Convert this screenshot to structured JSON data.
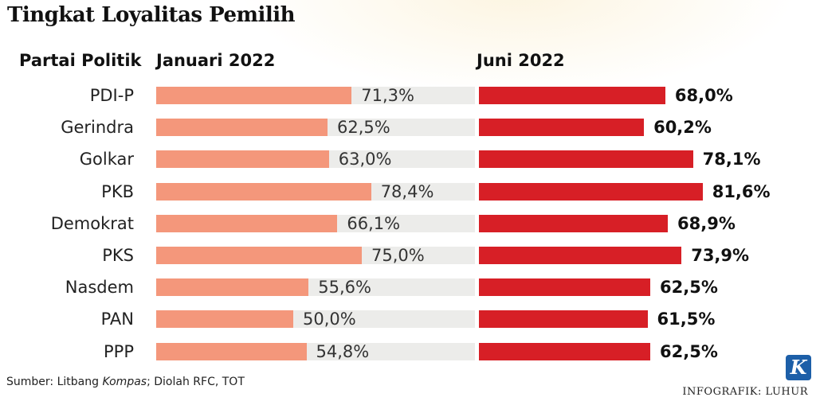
{
  "title": "Tingkat Loyalitas Pemilih",
  "headers": {
    "party": "Partai Politik",
    "jan": "Januari 2022",
    "jun": "Juni 2022"
  },
  "source": {
    "prefix": "Sumber: Litbang ",
    "italic": "Kompas",
    "suffix": "; Diolah RFC, TOT"
  },
  "credit": "INFOGRAFIK: LUHUR",
  "logo_letter": "K",
  "colors": {
    "jan": "#f4977b",
    "jun": "#d71f26",
    "track": "#ececea"
  },
  "chart_data": {
    "type": "bar",
    "categories": [
      "PDI-P",
      "Gerindra",
      "Golkar",
      "PKB",
      "Demokrat",
      "PKS",
      "Nasdem",
      "PAN",
      "PPP"
    ],
    "series": [
      {
        "name": "Januari 2022",
        "values": [
          71.3,
          62.5,
          63.0,
          78.4,
          66.1,
          75.0,
          55.6,
          50.0,
          54.8
        ],
        "labels": [
          "71,3%",
          "62,5%",
          "63,0%",
          "78,4%",
          "66,1%",
          "75,0%",
          "55,6%",
          "50,0%",
          "54,8%"
        ]
      },
      {
        "name": "Juni 2022",
        "values": [
          68.0,
          60.2,
          78.1,
          81.6,
          68.9,
          73.9,
          62.5,
          61.5,
          62.5
        ],
        "labels": [
          "68,0%",
          "60,2%",
          "78,1%",
          "81,6%",
          "68,9%",
          "73,9%",
          "62,5%",
          "61,5%",
          "62,5%"
        ]
      }
    ],
    "xlim": [
      0,
      100
    ],
    "orientation": "horizontal"
  }
}
